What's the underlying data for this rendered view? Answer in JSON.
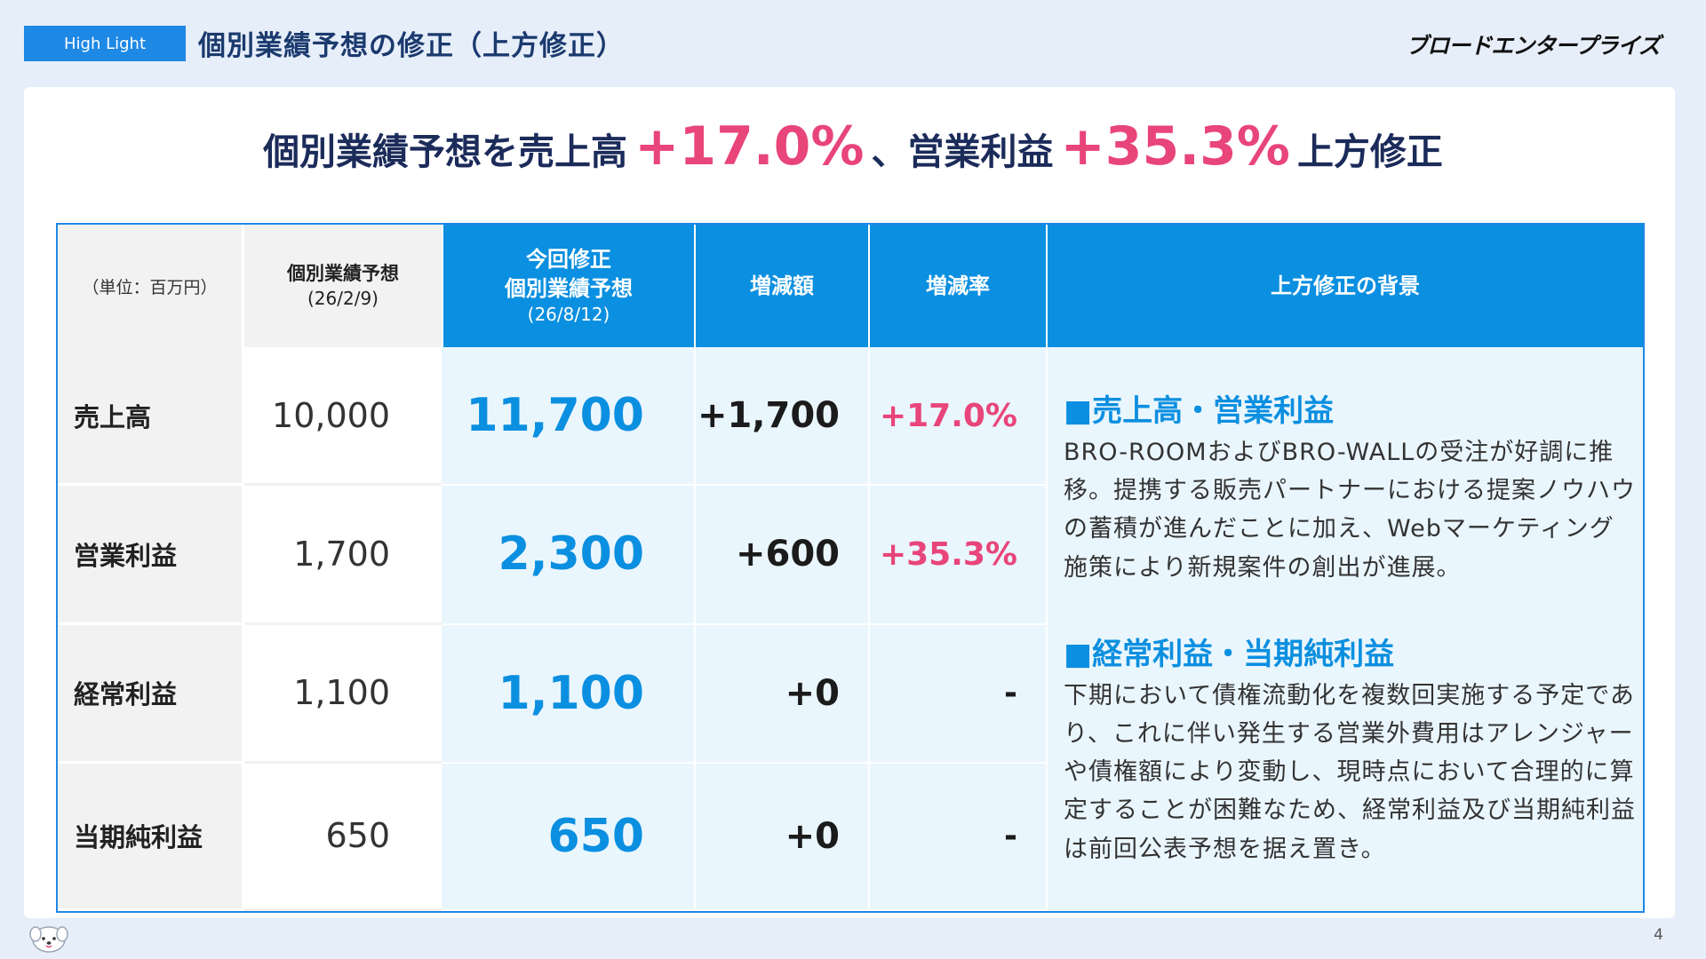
{
  "header": {
    "badge": "High Light",
    "title": "個別業績予想の修正（上方修正）",
    "logo": "ブロードエンタープライズ"
  },
  "headline": {
    "part1": "個別業績予想を売上高",
    "value1": "+17.0%",
    "part2": "、営業利益",
    "value2": "+35.3%",
    "part3": "上方修正"
  },
  "table": {
    "headers": {
      "unit": "（単位：百万円）",
      "prev_line1": "個別業績予想",
      "prev_line2": "(26/2/9)",
      "new_line1": "今回修正",
      "new_line2": "個別業績予想",
      "new_line3": "(26/8/12)",
      "diff": "増減額",
      "rate": "増減率",
      "background": "上方修正の背景"
    },
    "rows": [
      {
        "label": "売上高",
        "prev": "10,000",
        "new": "11,700",
        "diff": "+1,700",
        "rate": "+17.0%"
      },
      {
        "label": "営業利益",
        "prev": "1,700",
        "new": "2,300",
        "diff": "+600",
        "rate": "+35.3%"
      },
      {
        "label": "経常利益",
        "prev": "1,100",
        "new": "1,100",
        "diff": "+0",
        "rate": "-"
      },
      {
        "label": "当期純利益",
        "prev": "650",
        "new": "650",
        "diff": "+0",
        "rate": "-"
      }
    ],
    "background": {
      "section1_title": "■売上高・営業利益",
      "section1_body": "BRO-ROOMおよびBRO-WALLの受注が好調に推移。提携する販売パートナーにおける提案ノウハウの蓄積が進んだことに加え、Webマーケティング施策により新規案件の創出が進展。",
      "section2_title": "■経常利益・当期純利益",
      "section2_body": "下期において債権流動化を複数回実施する予定であり、これに伴い発生する営業外費用はアレンジャーや債権額により変動し、現時点において合理的に算定することが困難なため、経常利益及び当期純利益は前回公表予想を据え置き。"
    }
  },
  "footer": {
    "page": "4",
    "mascot_icon": "dog-mascot-icon"
  },
  "colors": {
    "accent_blue": "#0b8fe0",
    "highlight_pink": "#e8457a",
    "navy": "#1b2b5a"
  }
}
